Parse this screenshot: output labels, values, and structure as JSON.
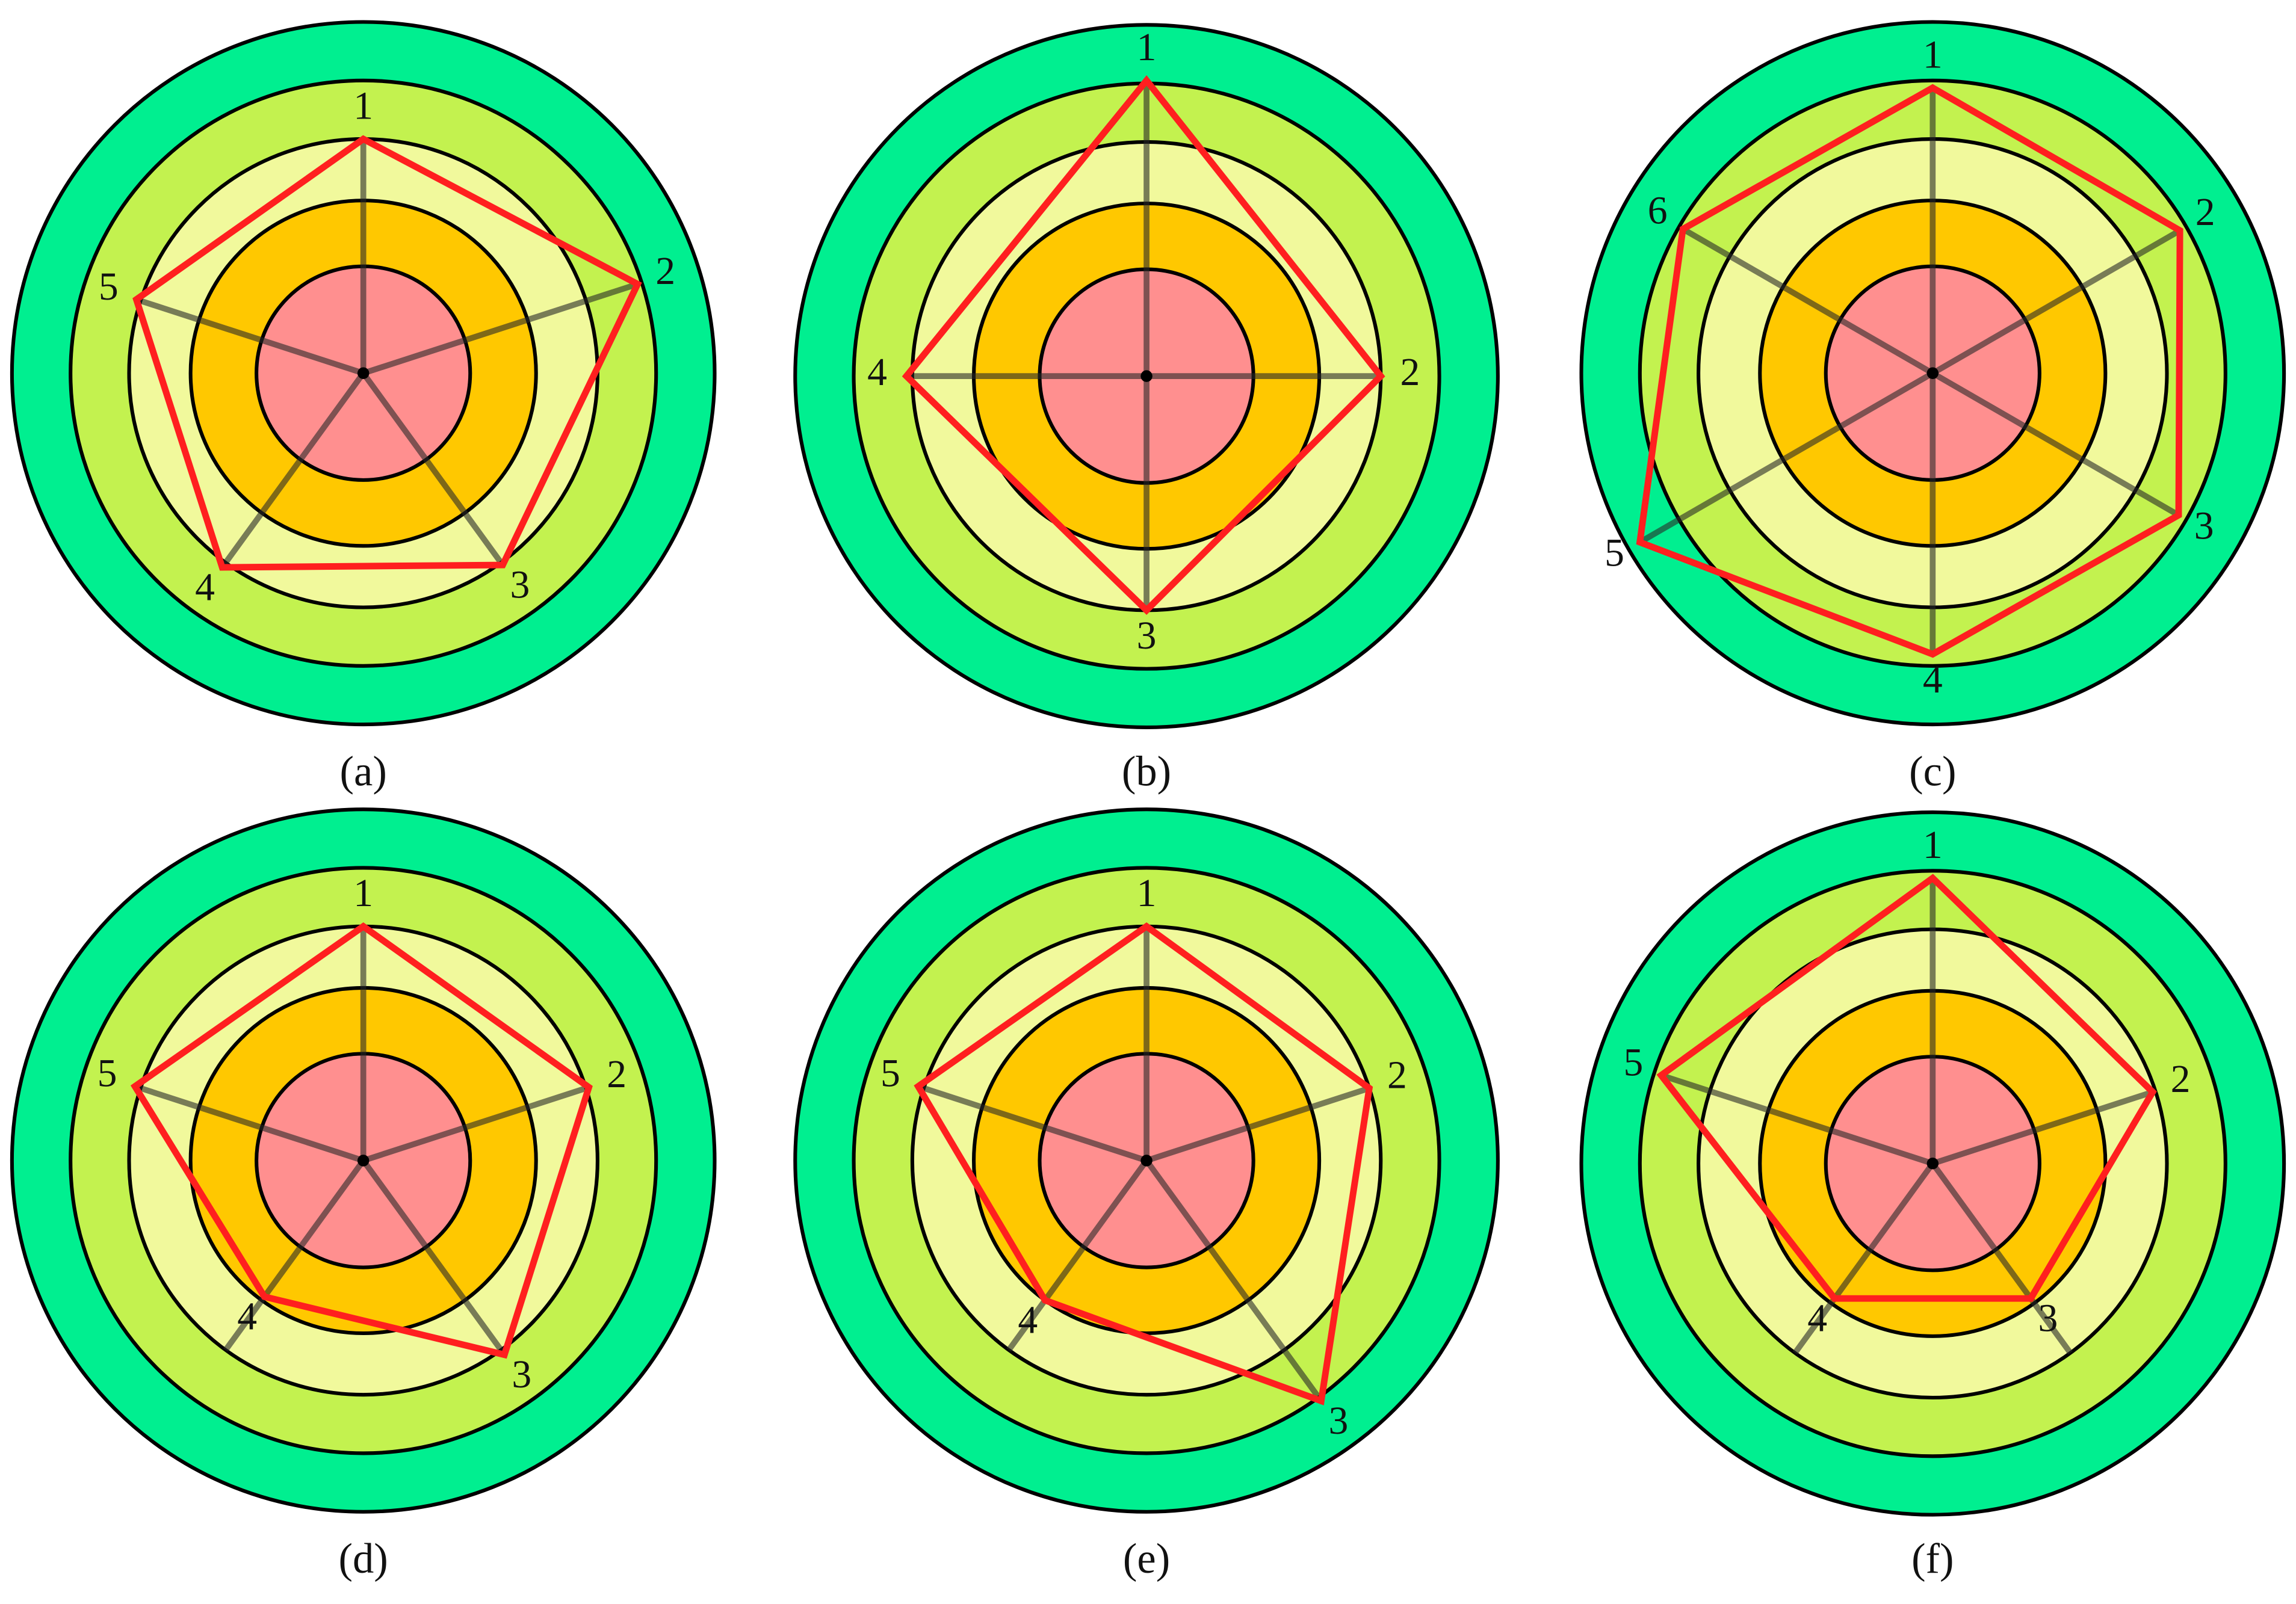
{
  "chart_data": [
    {
      "type": "radar",
      "title": "(a)",
      "categories": [
        "1",
        "2",
        "3",
        "4",
        "5"
      ],
      "values": [
        160,
        197,
        162,
        164,
        163
      ],
      "rlim": [
        0,
        240
      ],
      "rticks": [
        73,
        118,
        160,
        200,
        240
      ],
      "ring_colors": [
        "#ff8f8f",
        "#ffc800",
        "#f1f99c",
        "#c3f24f",
        "#00ef90"
      ],
      "color": "#ff1f1f"
    },
    {
      "type": "radar",
      "title": "(b)",
      "categories": [
        "1",
        "2",
        "3",
        "4"
      ],
      "values": [
        202,
        160,
        160,
        164
      ],
      "rlim": [
        0,
        240
      ],
      "rticks": [
        73,
        118,
        160,
        200,
        240
      ],
      "ring_colors": [
        "#ff8f8f",
        "#ffc800",
        "#f1f99c",
        "#c3f24f",
        "#00ef90"
      ],
      "color": "#ff1f1f"
    },
    {
      "type": "radar",
      "title": "(c)",
      "categories": [
        "1",
        "2",
        "3",
        "4",
        "5",
        "6"
      ],
      "values": [
        195,
        195,
        194,
        192,
        231,
        197
      ],
      "rlim": [
        0,
        240
      ],
      "rticks": [
        73,
        118,
        160,
        200,
        240
      ],
      "ring_colors": [
        "#ff8f8f",
        "#ffc800",
        "#f1f99c",
        "#c3f24f",
        "#00ef90"
      ],
      "color": "#ff1f1f"
    },
    {
      "type": "radar",
      "title": "(d)",
      "categories": [
        "1",
        "2",
        "3",
        "4",
        "5"
      ],
      "values": [
        160,
        162,
        164,
        115,
        164
      ],
      "rlim": [
        0,
        240
      ],
      "rticks": [
        73,
        118,
        160,
        200,
        240
      ],
      "ring_colors": [
        "#ff8f8f",
        "#ffc800",
        "#f1f99c",
        "#c3f24f",
        "#00ef90"
      ],
      "color": "#ff1f1f"
    },
    {
      "type": "radar",
      "title": "(e)",
      "categories": [
        "1",
        "2",
        "3",
        "4",
        "5"
      ],
      "values": [
        160,
        160,
        203,
        118,
        164
      ],
      "rlim": [
        0,
        240
      ],
      "rticks": [
        73,
        118,
        160,
        200,
        240
      ],
      "ring_colors": [
        "#ff8f8f",
        "#ffc800",
        "#f1f99c",
        "#c3f24f",
        "#00ef90"
      ],
      "color": "#ff1f1f"
    },
    {
      "type": "radar",
      "title": "(f)",
      "categories": [
        "1",
        "2",
        "3",
        "4",
        "5"
      ],
      "values": [
        195,
        158,
        114,
        114,
        195
      ],
      "rlim": [
        0,
        240
      ],
      "rticks": [
        73,
        118,
        160,
        200,
        240
      ],
      "ring_colors": [
        "#ff8f8f",
        "#ffc800",
        "#f1f99c",
        "#c3f24f",
        "#00ef90"
      ],
      "color": "#ff1f1f"
    }
  ]
}
